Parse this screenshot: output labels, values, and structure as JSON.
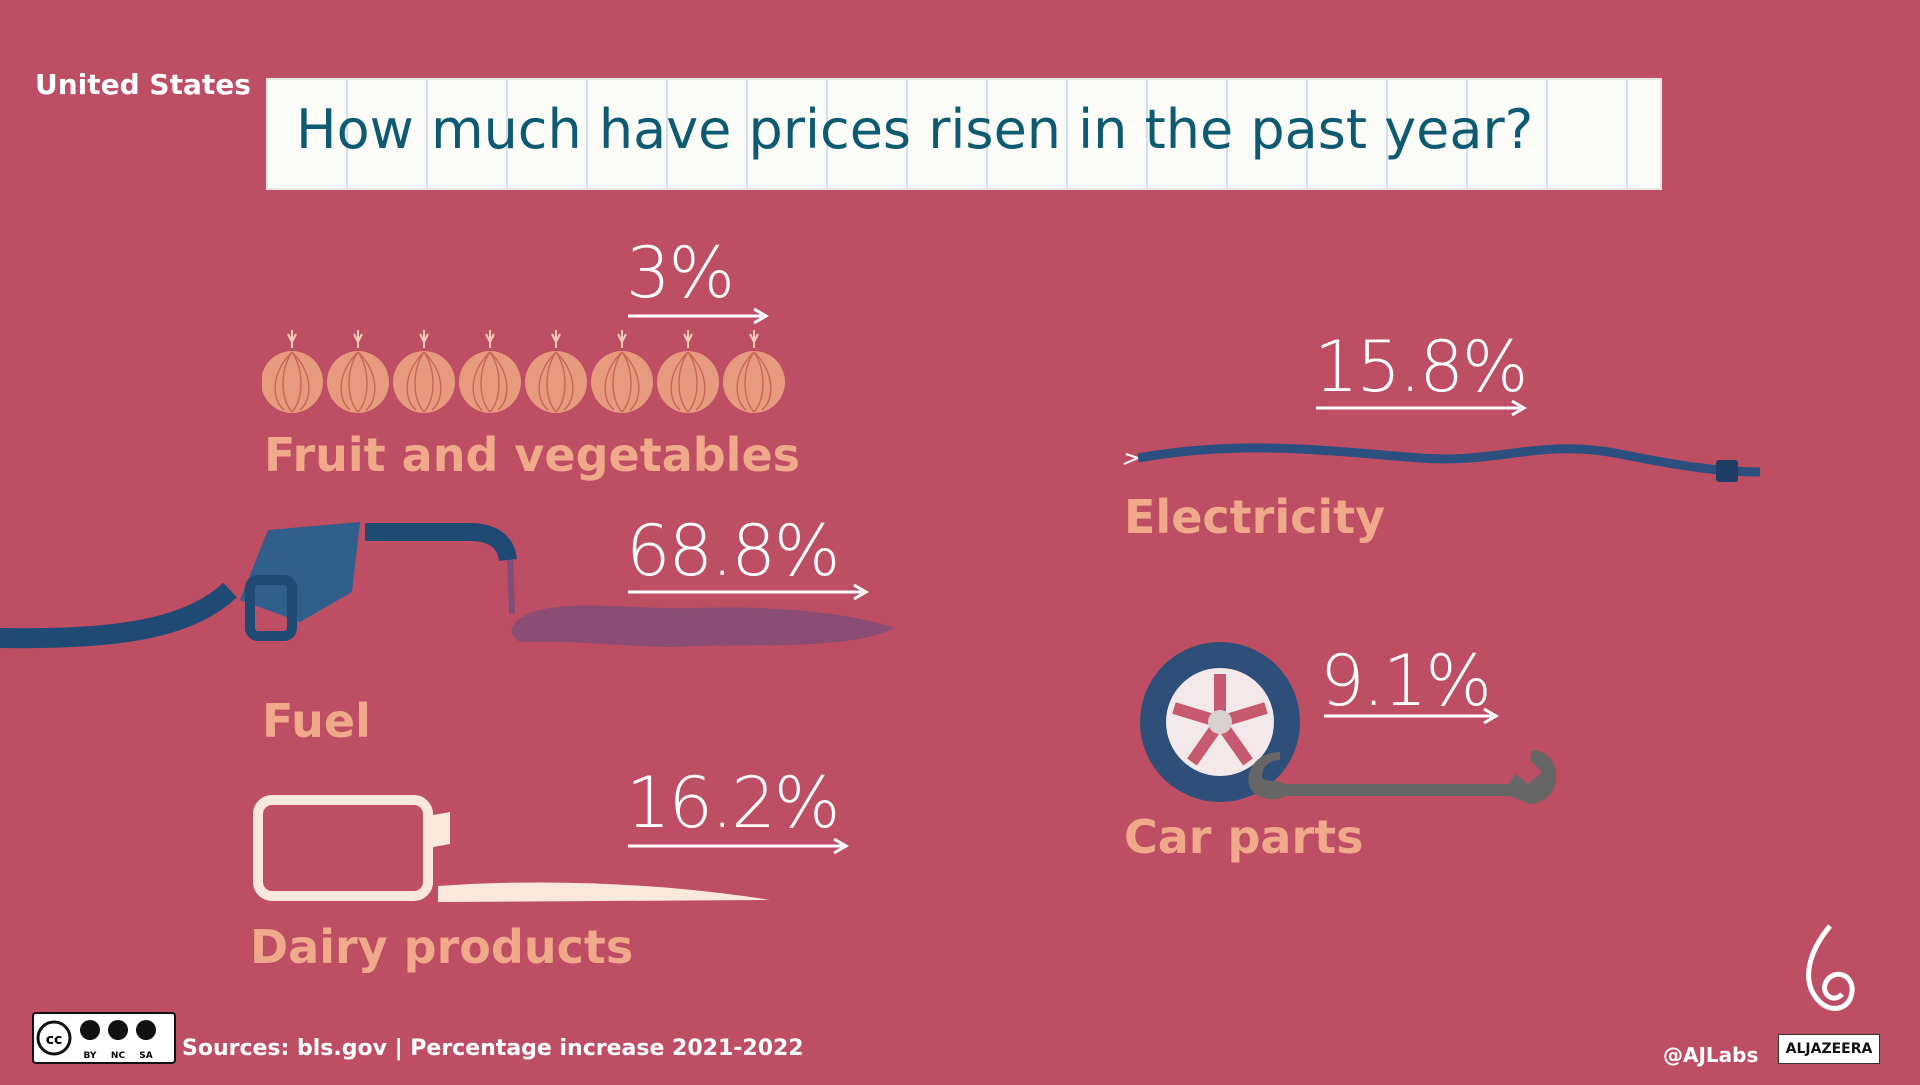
{
  "country": "United States",
  "title": "How much have prices risen in the past year?",
  "categories": [
    {
      "label": "Fruit and vegetables",
      "value": "3%"
    },
    {
      "label": "Fuel",
      "value": "68.8%"
    },
    {
      "label": "Dairy products",
      "value": "16.2%"
    },
    {
      "label": "Electricity",
      "value": "15.8%"
    },
    {
      "label": "Car parts",
      "value": "9.1%"
    }
  ],
  "footer": {
    "sources": "Sources: bls.gov | Percentage increase 2021-2022",
    "handle": "@AJLabs",
    "brand": "ALJAZEERA",
    "license": [
      "BY",
      "NC",
      "SA"
    ]
  },
  "colors": {
    "background": "#bd4e64",
    "title_text": "#0e5a70",
    "label": "#f1a98b",
    "value": "#ffffff"
  },
  "icons": [
    "onion-icon",
    "fuel-nozzle-icon",
    "milk-bottle-icon",
    "cable-icon",
    "tyre-icon",
    "wrench-icon"
  ]
}
